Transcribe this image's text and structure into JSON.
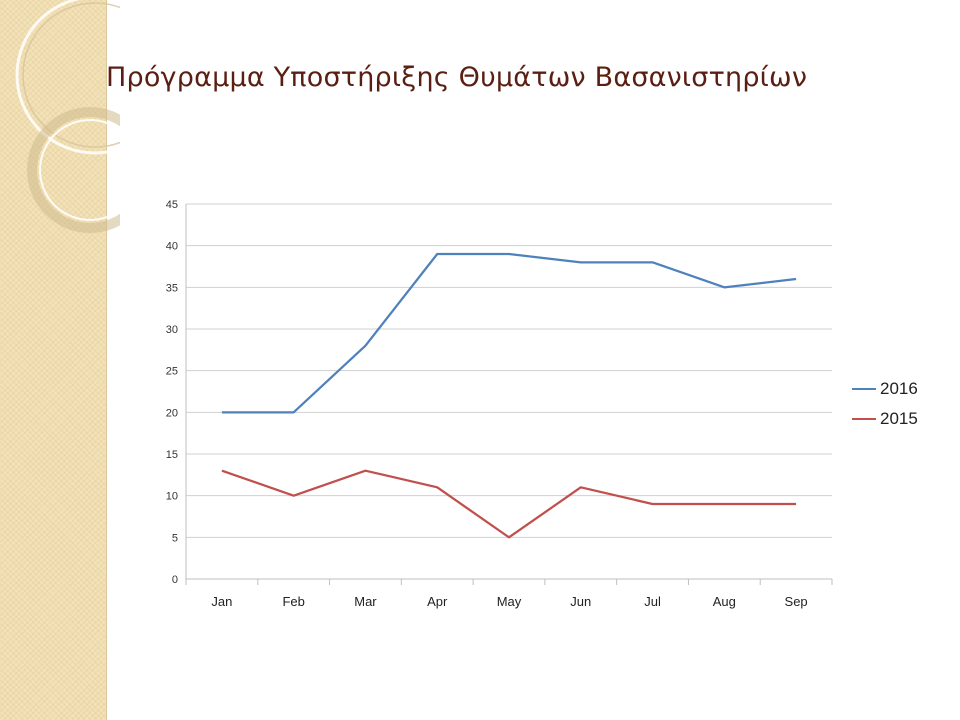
{
  "slide": {
    "title": "Πρόγραμμα Υποστήριξης Θυμάτων  Βασανιστηρίων"
  },
  "colors": {
    "title": "#5a1f12",
    "series_2016": "#4f81bd",
    "series_2015": "#c0504d",
    "grid": "#d0d0d0",
    "band": "#f3e2b8"
  },
  "chart_data": {
    "type": "line",
    "categories": [
      "Jan",
      "Feb",
      "Mar",
      "Apr",
      "May",
      "Jun",
      "Jul",
      "Aug",
      "Sep"
    ],
    "series": [
      {
        "name": "2016",
        "values": [
          20,
          20,
          28,
          39,
          39,
          38,
          38,
          35,
          36
        ]
      },
      {
        "name": "2015",
        "values": [
          13,
          10,
          13,
          11,
          5,
          11,
          9,
          9,
          9
        ]
      }
    ],
    "yticks": [
      "0",
      "5",
      "10",
      "15",
      "20",
      "25",
      "30",
      "35",
      "40",
      "45"
    ],
    "ylim": [
      0,
      45
    ],
    "grid": true,
    "legend": "right"
  }
}
